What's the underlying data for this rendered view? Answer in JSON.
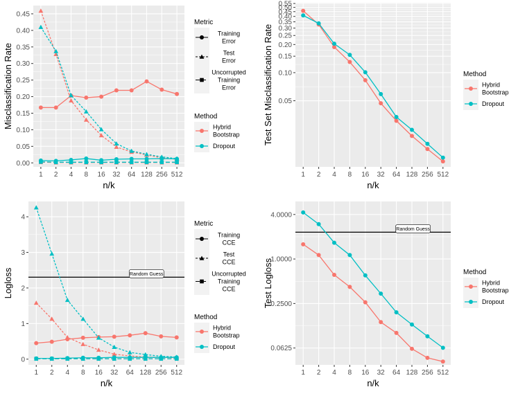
{
  "chart_data": [
    {
      "id": "tl",
      "type": "line",
      "ylabel": "Misclassification Rate",
      "xlabel": "n/k",
      "yscale": "linear",
      "ylim": [
        -0.012,
        0.475
      ],
      "yticks": [
        "0.00",
        "0.05",
        "0.10",
        "0.15",
        "0.20",
        "0.25",
        "0.30",
        "0.35",
        "0.40",
        "0.45"
      ],
      "categories": [
        "1",
        "2",
        "4",
        "8",
        "16",
        "32",
        "64",
        "128",
        "256",
        "512"
      ],
      "series": [
        {
          "name": "Hybrid Bootstrap",
          "metric": "Training Error",
          "color": "#F8766D",
          "values": [
            0.167,
            0.167,
            0.203,
            0.197,
            0.2,
            0.219,
            0.219,
            0.246,
            0.221,
            0.208
          ]
        },
        {
          "name": "Hybrid Bootstrap",
          "metric": "Test Error",
          "color": "#F8766D",
          "values": [
            0.459,
            0.328,
            0.188,
            0.13,
            0.083,
            0.048,
            0.033,
            0.024,
            0.015,
            0.011
          ]
        },
        {
          "name": "Hybrid Bootstrap",
          "metric": "Uncorrupted Training Error",
          "color": "#F8766D",
          "values": [
            0.002,
            0.001,
            0.001,
            0.001,
            0.001,
            0.001,
            0.001,
            0.001,
            0.001,
            0.001
          ]
        },
        {
          "name": "Dropout",
          "metric": "Training Error",
          "color": "#00BFC4",
          "values": [
            0.007,
            0.006,
            0.009,
            0.013,
            0.008,
            0.011,
            0.012,
            0.012,
            0.013,
            0.012
          ]
        },
        {
          "name": "Dropout",
          "metric": "Test Error",
          "color": "#00BFC4",
          "values": [
            0.41,
            0.337,
            0.204,
            0.155,
            0.101,
            0.058,
            0.036,
            0.026,
            0.018,
            0.013
          ]
        },
        {
          "name": "Dropout",
          "metric": "Uncorrupted Training Error",
          "color": "#00BFC4",
          "values": [
            0.003,
            0.002,
            0.002,
            0.002,
            0.002,
            0.002,
            0.002,
            0.002,
            0.002,
            0.002
          ]
        }
      ],
      "legend_metric": {
        "title": "Metric",
        "items": [
          [
            "Training",
            "Error"
          ],
          [
            "Test",
            "Error"
          ],
          [
            "Uncorrupted",
            "Training",
            "Error"
          ]
        ]
      },
      "legend_method": {
        "title": "Method",
        "items": [
          [
            "Hybrid",
            "Bootstrap"
          ],
          [
            "Dropout"
          ]
        ]
      }
    },
    {
      "id": "tr",
      "type": "line",
      "ylabel": "Test Set Misclassification Rate",
      "xlabel": "n/k",
      "yscale": "log10",
      "ylim": [
        0.0098,
        0.56
      ],
      "yticks": [
        "0.05",
        "0.10",
        "0.15",
        "0.20",
        "0.25",
        "0.30",
        "0.35",
        "0.40",
        "0.45",
        "0.50",
        "0.55"
      ],
      "categories": [
        "1",
        "2",
        "4",
        "8",
        "16",
        "32",
        "64",
        "128",
        "256",
        "512"
      ],
      "series": [
        {
          "name": "Hybrid Bootstrap",
          "color": "#F8766D",
          "values": [
            0.459,
            0.328,
            0.188,
            0.13,
            0.083,
            0.047,
            0.0305,
            0.021,
            0.0152,
            0.0112
          ]
        },
        {
          "name": "Dropout",
          "color": "#00BFC4",
          "values": [
            0.41,
            0.337,
            0.204,
            0.155,
            0.101,
            0.059,
            0.0335,
            0.0244,
            0.0173,
            0.0123
          ]
        }
      ],
      "legend_method": {
        "title": "Method",
        "items": [
          [
            "Hybrid",
            "Bootstrap"
          ],
          [
            "Dropout"
          ]
        ]
      }
    },
    {
      "id": "bl",
      "type": "line",
      "ylabel": "Logloss",
      "xlabel": "n/k",
      "yscale": "linear",
      "ylim": [
        -0.16,
        4.43
      ],
      "yticks": [
        "0",
        "1",
        "2",
        "3",
        "4"
      ],
      "categories": [
        "1",
        "2",
        "4",
        "8",
        "16",
        "32",
        "64",
        "128",
        "256",
        "512"
      ],
      "series": [
        {
          "name": "Hybrid Bootstrap",
          "metric": "Training CCE",
          "color": "#F8766D",
          "values": [
            0.45,
            0.49,
            0.56,
            0.6,
            0.62,
            0.63,
            0.67,
            0.73,
            0.64,
            0.61
          ]
        },
        {
          "name": "Hybrid Bootstrap",
          "metric": "Test CCE",
          "color": "#F8766D",
          "values": [
            1.58,
            1.13,
            0.61,
            0.42,
            0.26,
            0.14,
            0.09,
            0.06,
            0.05,
            0.04
          ]
        },
        {
          "name": "Hybrid Bootstrap",
          "metric": "Uncorrupted Training CCE",
          "color": "#F8766D",
          "values": [
            0.01,
            0.01,
            0.01,
            0.01,
            0.01,
            0.01,
            0.01,
            0.01,
            0.01,
            0.01
          ]
        },
        {
          "name": "Dropout",
          "metric": "Training CCE",
          "color": "#00BFC4",
          "values": [
            0.02,
            0.02,
            0.03,
            0.04,
            0.04,
            0.05,
            0.05,
            0.05,
            0.05,
            0.05
          ]
        },
        {
          "name": "Dropout",
          "metric": "Test CCE",
          "color": "#00BFC4",
          "values": [
            4.26,
            2.96,
            1.66,
            1.13,
            0.6,
            0.34,
            0.19,
            0.13,
            0.08,
            0.06
          ]
        },
        {
          "name": "Dropout",
          "metric": "Uncorrupted Training CCE",
          "color": "#00BFC4",
          "values": [
            0.01,
            0.01,
            0.01,
            0.01,
            0.01,
            0.01,
            0.01,
            0.01,
            0.01,
            0.01
          ]
        }
      ],
      "hline": {
        "value": 2.303,
        "label": "Random Guess"
      },
      "legend_metric": {
        "title": "Metric",
        "items": [
          [
            "Training",
            "CCE"
          ],
          [
            "Test",
            "CCE"
          ],
          [
            "Uncorrupted",
            "Training",
            "CCE"
          ]
        ]
      },
      "legend_method": {
        "title": "Method",
        "items": [
          [
            "Hybrid",
            "Bootstrap"
          ],
          [
            "Dropout"
          ]
        ]
      }
    },
    {
      "id": "br",
      "type": "line",
      "ylabel": "Test Logloss",
      "xlabel": "n/k",
      "yscale": "log10",
      "ylim": [
        0.037,
        6.0
      ],
      "yticks": [
        "0.0625",
        "0.2500",
        "1.0000",
        "4.0000"
      ],
      "categories": [
        "1",
        "2",
        "4",
        "8",
        "16",
        "32",
        "64",
        "128",
        "256",
        "512"
      ],
      "series": [
        {
          "name": "Hybrid Bootstrap",
          "color": "#F8766D",
          "values": [
            1.58,
            1.13,
            0.61,
            0.42,
            0.26,
            0.14,
            0.1,
            0.061,
            0.046,
            0.041
          ]
        },
        {
          "name": "Dropout",
          "color": "#00BFC4",
          "values": [
            4.26,
            2.96,
            1.66,
            1.13,
            0.6,
            0.34,
            0.19,
            0.13,
            0.09,
            0.063
          ]
        }
      ],
      "hline": {
        "value": 2.303,
        "label": "Random Guess"
      },
      "legend_method": {
        "title": "Method",
        "items": [
          [
            "Hybrid",
            "Bootstrap"
          ],
          [
            "Dropout"
          ]
        ]
      }
    }
  ]
}
